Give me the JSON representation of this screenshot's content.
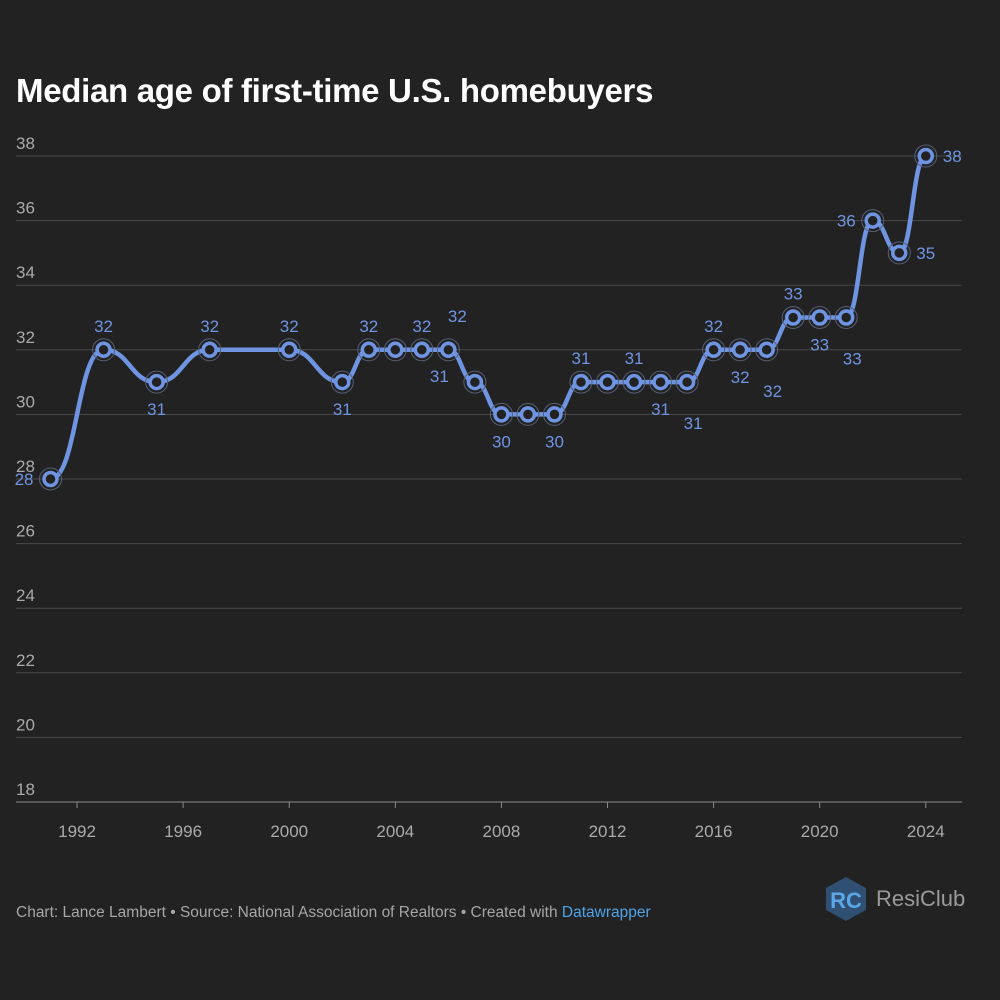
{
  "title": "Median age of first-time U.S. homebuyers",
  "footer": {
    "credit": "Chart: Lance Lambert • Source: National Association of Realtors • Created with ",
    "link": "Datawrapper"
  },
  "logo": {
    "text": "ResiClub",
    "mark": "RC"
  },
  "colors": {
    "background": "#222222",
    "line": "#6f95e2",
    "grid": "#4a4a4a",
    "axis_text": "#aaaaaa",
    "link": "#4fa3e8"
  },
  "chart_data": {
    "type": "line",
    "title": "Median age of first-time U.S. homebuyers",
    "xlabel": "",
    "ylabel": "",
    "x": [
      1991,
      1993,
      1995,
      1997,
      2000,
      2002,
      2003,
      2004,
      2005,
      2006,
      2007,
      2008,
      2009,
      2010,
      2011,
      2012,
      2013,
      2014,
      2015,
      2016,
      2017,
      2018,
      2019,
      2020,
      2021,
      2022,
      2023,
      2024
    ],
    "values": [
      28,
      32,
      31,
      32,
      32,
      31,
      32,
      32,
      32,
      32,
      31,
      30,
      30,
      30,
      31,
      31,
      31,
      31,
      31,
      32,
      32,
      32,
      33,
      33,
      33,
      36,
      35,
      38
    ],
    "labels": [
      {
        "x": 1991,
        "text": "28",
        "pos": "left"
      },
      {
        "x": 1993,
        "text": "32",
        "pos": "above"
      },
      {
        "x": 1995,
        "text": "31",
        "pos": "below"
      },
      {
        "x": 1997,
        "text": "32",
        "pos": "above"
      },
      {
        "x": 2000,
        "text": "32",
        "pos": "above"
      },
      {
        "x": 2002,
        "text": "31",
        "pos": "below"
      },
      {
        "x": 2003,
        "text": "32",
        "pos": "above"
      },
      {
        "x": 2005,
        "text": "32",
        "pos": "above"
      },
      {
        "x": 2006,
        "text": "32",
        "pos": "above-right"
      },
      {
        "x": 2006,
        "text": "31",
        "pos": "below-left"
      },
      {
        "x": 2008,
        "text": "30",
        "pos": "below"
      },
      {
        "x": 2010,
        "text": "30",
        "pos": "below"
      },
      {
        "x": 2011,
        "text": "31",
        "pos": "above"
      },
      {
        "x": 2013,
        "text": "31",
        "pos": "above"
      },
      {
        "x": 2014,
        "text": "31",
        "pos": "below"
      },
      {
        "x": 2015,
        "text": "31",
        "pos": "below-right"
      },
      {
        "x": 2016,
        "text": "32",
        "pos": "above"
      },
      {
        "x": 2017,
        "text": "32",
        "pos": "below"
      },
      {
        "x": 2018,
        "text": "32",
        "pos": "below-right"
      },
      {
        "x": 2019,
        "text": "33",
        "pos": "above"
      },
      {
        "x": 2020,
        "text": "33",
        "pos": "below"
      },
      {
        "x": 2021,
        "text": "33",
        "pos": "below-right"
      },
      {
        "x": 2022,
        "text": "36",
        "pos": "left"
      },
      {
        "x": 2023,
        "text": "35",
        "pos": "right"
      },
      {
        "x": 2024,
        "text": "38",
        "pos": "right"
      }
    ],
    "xticks": [
      1992,
      1996,
      2000,
      2004,
      2008,
      2012,
      2016,
      2020,
      2024
    ],
    "yticks": [
      18,
      20,
      22,
      24,
      26,
      28,
      30,
      32,
      34,
      36,
      38
    ],
    "xlim": [
      1990,
      2024.8
    ],
    "ylim": [
      18,
      38
    ],
    "grid": true,
    "legend": "none"
  }
}
